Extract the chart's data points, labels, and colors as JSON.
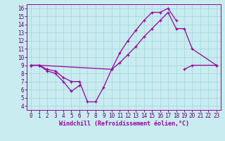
{
  "bg_color": "#c8ecf0",
  "grid_color": "#a8d8e0",
  "line_color": "#990099",
  "xlabel": "Windchill (Refroidissement éolien,°C)",
  "xlim_min": -0.5,
  "xlim_max": 23.5,
  "ylim_min": 3.5,
  "ylim_max": 16.5,
  "xticks": [
    0,
    1,
    2,
    3,
    4,
    5,
    6,
    7,
    8,
    9,
    10,
    11,
    12,
    13,
    14,
    15,
    16,
    17,
    18,
    19,
    20,
    21,
    22,
    23
  ],
  "yticks": [
    4,
    5,
    6,
    7,
    8,
    9,
    10,
    11,
    12,
    13,
    14,
    15,
    16
  ],
  "series": [
    [
      [
        0,
        9
      ],
      [
        1,
        9
      ],
      [
        2,
        8.5
      ],
      [
        3,
        8.3
      ],
      [
        4,
        7.5
      ],
      [
        5,
        7.0
      ],
      [
        6,
        7.0
      ],
      [
        7,
        4.5
      ],
      [
        8,
        4.5
      ],
      [
        9,
        6.3
      ],
      [
        10,
        8.5
      ],
      [
        11,
        10.5
      ],
      [
        12,
        12.0
      ],
      [
        13,
        13.3
      ],
      [
        14,
        14.5
      ],
      [
        15,
        15.5
      ],
      [
        16,
        15.5
      ],
      [
        17,
        16.0
      ],
      [
        18,
        14.5
      ]
    ],
    [
      [
        0,
        9
      ],
      [
        1,
        9
      ],
      [
        2,
        8.3
      ],
      [
        3,
        8.0
      ],
      [
        4,
        7.0
      ],
      [
        5,
        5.8
      ],
      [
        6,
        6.5
      ]
    ],
    [
      [
        0,
        9
      ],
      [
        1,
        9
      ],
      [
        10,
        8.5
      ],
      [
        11,
        9.3
      ],
      [
        12,
        10.3
      ],
      [
        13,
        11.3
      ],
      [
        14,
        12.5
      ],
      [
        15,
        13.5
      ],
      [
        16,
        14.5
      ],
      [
        17,
        15.5
      ],
      [
        18,
        13.5
      ],
      [
        19,
        13.5
      ],
      [
        20,
        11.0
      ],
      [
        23,
        9.0
      ]
    ],
    [
      [
        19,
        8.5
      ],
      [
        20,
        9.0
      ],
      [
        23,
        9.0
      ]
    ]
  ],
  "tick_fontsize": 5.5,
  "xlabel_fontsize": 6.0,
  "tick_color": "#660066"
}
